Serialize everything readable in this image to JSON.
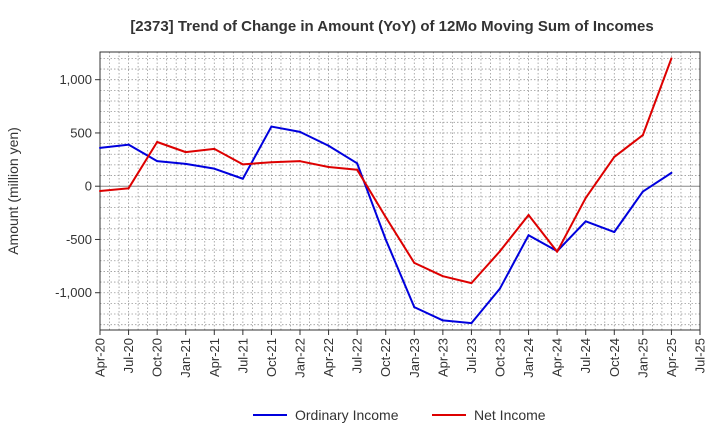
{
  "chart_data": {
    "type": "line",
    "title": "[2373]  Trend of Change in Amount (YoY) of 12Mo Moving Sum of Incomes",
    "ylabel": "Amount (million yen)",
    "xlabel": "",
    "ylim": [
      -1350,
      1260
    ],
    "yticks": [
      {
        "value": 1000,
        "label": "1,000"
      },
      {
        "value": 500,
        "label": "500"
      },
      {
        "value": 0,
        "label": "0"
      },
      {
        "value": -500,
        "label": "-500"
      },
      {
        "value": -1000,
        "label": "-1,000"
      }
    ],
    "xtick_labels": [
      "Apr-20",
      "Jul-20",
      "Oct-20",
      "Jan-21",
      "Apr-21",
      "Jul-21",
      "Oct-21",
      "Jan-22",
      "Apr-22",
      "Jul-22",
      "Oct-22",
      "Jan-23",
      "Apr-23",
      "Jul-23",
      "Oct-23",
      "Jan-24",
      "Apr-24",
      "Jul-24",
      "Oct-24",
      "Jan-25",
      "Apr-25",
      "Jul-25"
    ],
    "grid": true,
    "legend_position": "bottom",
    "series": [
      {
        "name": "Ordinary Income",
        "color": "#0000dd",
        "values": [
          360,
          390,
          235,
          210,
          165,
          70,
          560,
          510,
          380,
          215,
          -500,
          -1135,
          -1260,
          -1285,
          -960,
          -460,
          -610,
          -330,
          -430,
          -50,
          125
        ]
      },
      {
        "name": "Net Income",
        "color": "#dd0000",
        "values": [
          -45,
          -20,
          415,
          320,
          350,
          205,
          225,
          235,
          180,
          155,
          -290,
          -720,
          -845,
          -910,
          -610,
          -270,
          -615,
          -110,
          275,
          480,
          1200
        ]
      }
    ]
  }
}
